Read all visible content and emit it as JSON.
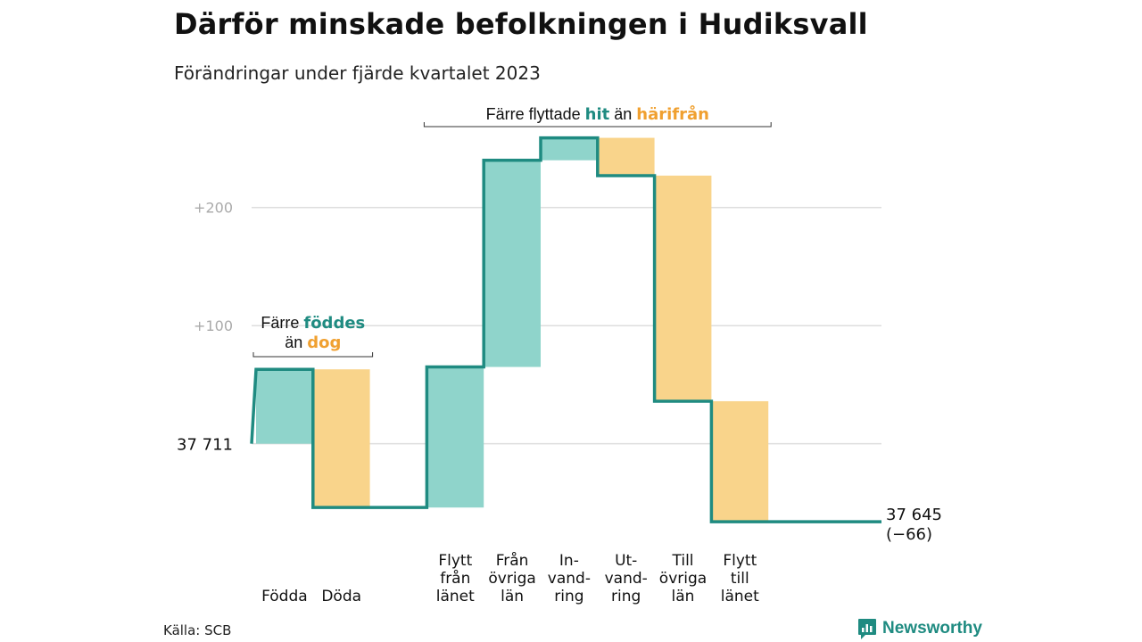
{
  "title": "Därför minskade befolkningen i Hudiksvall",
  "subtitle": "Förändringar under fjärde kvartalet 2023",
  "source": "Källa: SCB",
  "brand": {
    "name": "Newsworthy",
    "icon": "newsworthy-logo-icon"
  },
  "colors": {
    "increase": "#8fd4cb",
    "decrease": "#f9d48b",
    "line": "#1f8b81",
    "teal_text": "#1f8b81",
    "orange_text": "#f0a030",
    "grid": "#dddddd",
    "tick": "#aaaaaa"
  },
  "annotations": {
    "births": {
      "w1": "Färre",
      "w2": "föddes",
      "w3": "än",
      "w4": "dog"
    },
    "moves": {
      "w1": "Färre flyttade",
      "w2": "hit",
      "w3": "än",
      "w4": "härifrån"
    }
  },
  "chart_data": {
    "type": "waterfall",
    "start": {
      "label": "37 711",
      "value": 37711
    },
    "end": {
      "label": "37 645",
      "change_label": "(−66)",
      "value": 37645
    },
    "y_ticks": [
      {
        "value": 100,
        "label": "+100"
      },
      {
        "value": 200,
        "label": "+200"
      }
    ],
    "ylim": [
      -75,
      270
    ],
    "steps": [
      {
        "label": [
          "Födda"
        ],
        "delta": 63,
        "direction": "increase"
      },
      {
        "label": [
          "Döda"
        ],
        "delta": -117,
        "direction": "decrease"
      },
      {
        "label": [],
        "delta": 0,
        "direction": "gap"
      },
      {
        "label": [
          "Flytt",
          "från",
          "länet"
        ],
        "delta": 119,
        "direction": "increase"
      },
      {
        "label": [
          "Från",
          "övriga",
          "län"
        ],
        "delta": 175,
        "direction": "increase"
      },
      {
        "label": [
          "In-",
          "vand-",
          "ring"
        ],
        "delta": 19,
        "direction": "increase"
      },
      {
        "label": [
          "Ut-",
          "vand-",
          "ring"
        ],
        "delta": -32,
        "direction": "decrease"
      },
      {
        "label": [
          "Till",
          "övriga",
          "län"
        ],
        "delta": -191,
        "direction": "decrease"
      },
      {
        "label": [
          "Flytt",
          "till",
          "länet"
        ],
        "delta": -102,
        "direction": "decrease"
      }
    ]
  }
}
